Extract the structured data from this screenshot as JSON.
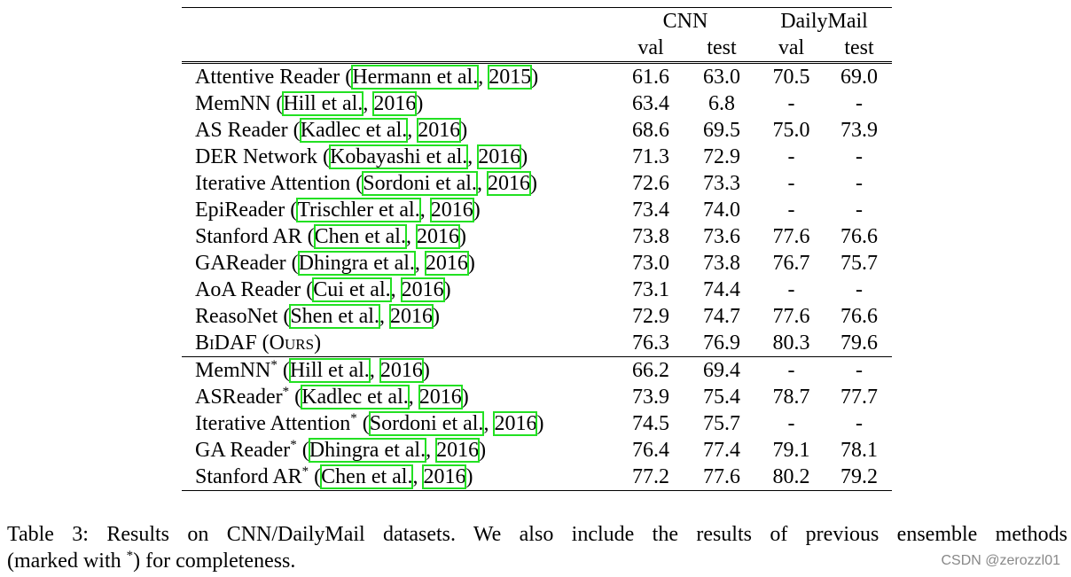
{
  "table": {
    "group_headers": [
      "CNN",
      "DailyMail"
    ],
    "sub_headers": [
      "val",
      "test",
      "val",
      "test"
    ],
    "rows": [
      {
        "name": "Attentive Reader",
        "sup": "",
        "small_caps": false,
        "cite_author": "Hermann et al.",
        "cite_year": "2015",
        "values": [
          "61.6",
          "63.0",
          "70.5",
          "69.0"
        ],
        "bold": false
      },
      {
        "name": "MemNN",
        "sup": "",
        "small_caps": false,
        "cite_author": "Hill et al.",
        "cite_year": "2016",
        "values": [
          "63.4",
          "6.8",
          "-",
          "-"
        ],
        "bold": false
      },
      {
        "name": "AS Reader",
        "sup": "",
        "small_caps": false,
        "cite_author": "Kadlec et al.",
        "cite_year": "2016",
        "values": [
          "68.6",
          "69.5",
          "75.0",
          "73.9"
        ],
        "bold": false
      },
      {
        "name": "DER Network",
        "sup": "",
        "small_caps": false,
        "cite_author": "Kobayashi et al.",
        "cite_year": "2016",
        "values": [
          "71.3",
          "72.9",
          "-",
          "-"
        ],
        "bold": false
      },
      {
        "name": "Iterative Attention",
        "sup": "",
        "small_caps": false,
        "cite_author": "Sordoni et al.",
        "cite_year": "2016",
        "values": [
          "72.6",
          "73.3",
          "-",
          "-"
        ],
        "bold": false
      },
      {
        "name": "EpiReader",
        "sup": "",
        "small_caps": false,
        "cite_author": "Trischler et al.",
        "cite_year": "2016",
        "values": [
          "73.4",
          "74.0",
          "-",
          "-"
        ],
        "bold": false
      },
      {
        "name": "Stanford AR",
        "sup": "",
        "small_caps": false,
        "cite_author": "Chen et al.",
        "cite_year": "2016",
        "values": [
          "73.8",
          "73.6",
          "77.6",
          "76.6"
        ],
        "bold": false
      },
      {
        "name": "GAReader",
        "sup": "",
        "small_caps": false,
        "cite_author": "Dhingra et al.",
        "cite_year": "2016",
        "values": [
          "73.0",
          "73.8",
          "76.7",
          "75.7"
        ],
        "bold": false
      },
      {
        "name": "AoA Reader",
        "sup": "",
        "small_caps": false,
        "cite_author": "Cui et al.",
        "cite_year": "2016",
        "values": [
          "73.1",
          "74.4",
          "-",
          "-"
        ],
        "bold": false
      },
      {
        "name": "ReasoNet",
        "sup": "",
        "small_caps": false,
        "cite_author": "Shen et al.",
        "cite_year": "2016",
        "values": [
          "72.9",
          "74.7",
          "77.6",
          "76.6"
        ],
        "bold": false
      },
      {
        "name": "BiDAF (Ours)",
        "sup": "",
        "small_caps": true,
        "cite_author": "",
        "cite_year": "",
        "values": [
          "76.3",
          "76.9",
          "80.3",
          "79.6"
        ],
        "bold": true
      },
      {
        "name": "MemNN",
        "sup": "*",
        "small_caps": false,
        "cite_author": "Hill et al.",
        "cite_year": "2016",
        "values": [
          "66.2",
          "69.4",
          "-",
          "-"
        ],
        "bold": false
      },
      {
        "name": "ASReader",
        "sup": "*",
        "small_caps": false,
        "cite_author": "Kadlec et al.",
        "cite_year": "2016",
        "values": [
          "73.9",
          "75.4",
          "78.7",
          "77.7"
        ],
        "bold": false
      },
      {
        "name": "Iterative Attention",
        "sup": "*",
        "small_caps": false,
        "cite_author": "Sordoni et al.",
        "cite_year": "2016",
        "values": [
          "74.5",
          "75.7",
          "-",
          "-"
        ],
        "bold": false
      },
      {
        "name": "GA Reader",
        "sup": "*",
        "small_caps": false,
        "cite_author": "Dhingra et al.",
        "cite_year": "2016",
        "values": [
          "76.4",
          "77.4",
          "79.1",
          "78.1"
        ],
        "bold": false
      },
      {
        "name": "Stanford AR",
        "sup": "*",
        "small_caps": false,
        "cite_author": "Chen et al.",
        "cite_year": "2016",
        "values": [
          "77.2",
          "77.6",
          "80.2",
          "79.2"
        ],
        "bold": false
      }
    ]
  },
  "caption": {
    "line1": "Table 3:  Results on CNN/DailyMail datasets.  We also include the results of previous ensemble methods",
    "line2_before": "(marked with ",
    "line2_sup": "*",
    "line2_after": ") for completeness."
  },
  "watermark": "CSDN @zerozzl01",
  "colors": {
    "citation_box": "#22e022"
  }
}
